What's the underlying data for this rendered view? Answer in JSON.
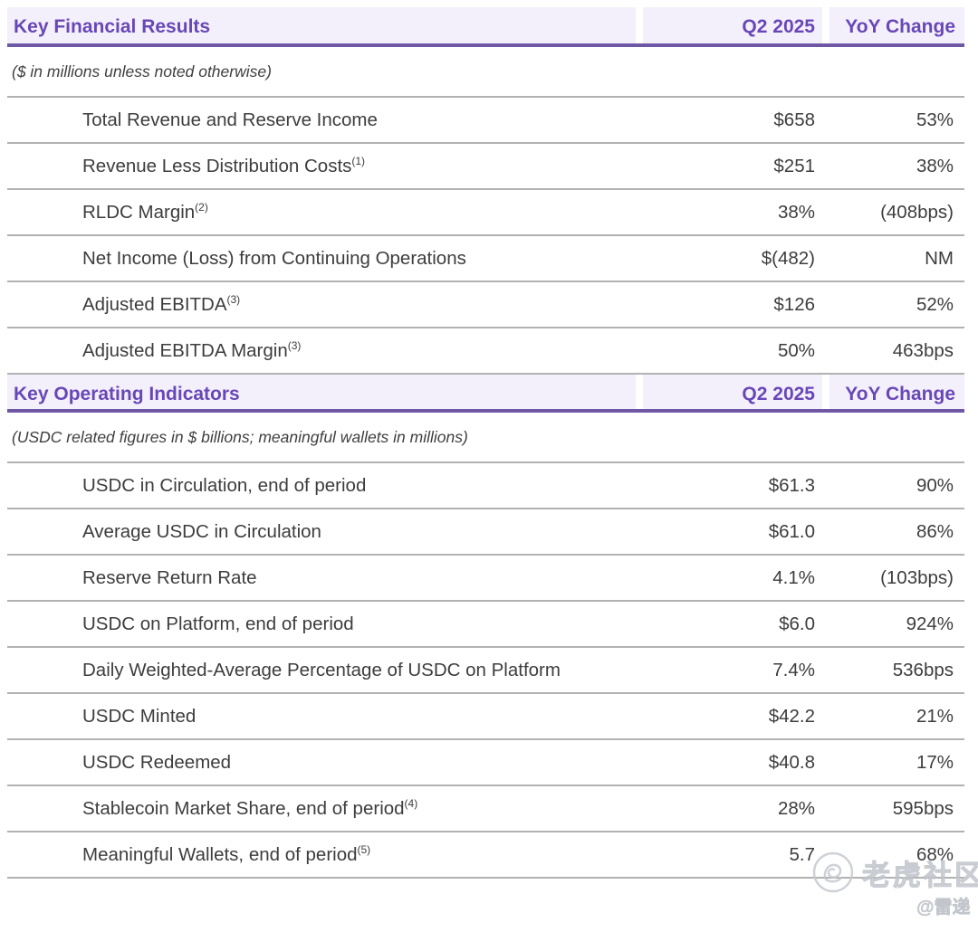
{
  "sections": [
    {
      "title": "Key Financial Results",
      "period_label": "Q2 2025",
      "change_label": "YoY Change",
      "note": "($ in millions unless noted otherwise)",
      "rows": [
        {
          "label": "Total Revenue and Reserve Income",
          "footnote": "",
          "value": "$658",
          "change": "53%"
        },
        {
          "label": "Revenue Less Distribution Costs",
          "footnote": "(1)",
          "value": "$251",
          "change": "38%"
        },
        {
          "label": "RLDC Margin",
          "footnote": "(2)",
          "value": "38%",
          "change": "(408bps)"
        },
        {
          "label": "Net Income (Loss) from Continuing Operations",
          "footnote": "",
          "value": "$(482)",
          "change": "NM"
        },
        {
          "label": "Adjusted EBITDA",
          "footnote": "(3)",
          "value": "$126",
          "change": "52%"
        },
        {
          "label": "Adjusted EBITDA Margin",
          "footnote": "(3)",
          "value": "50%",
          "change": "463bps"
        }
      ]
    },
    {
      "title": "Key Operating Indicators",
      "period_label": "Q2 2025",
      "change_label": "YoY Change",
      "note": "(USDC related figures in $ billions; meaningful wallets in millions)",
      "rows": [
        {
          "label": "USDC in Circulation, end of period",
          "footnote": "",
          "value": "$61.3",
          "change": "90%"
        },
        {
          "label": "Average USDC in Circulation",
          "footnote": "",
          "value": "$61.0",
          "change": "86%"
        },
        {
          "label": "Reserve Return Rate",
          "footnote": "",
          "value": "4.1%",
          "change": "(103bps)"
        },
        {
          "label": "USDC on Platform, end of period",
          "footnote": "",
          "value": "$6.0",
          "change": "924%"
        },
        {
          "label": "Daily Weighted-Average Percentage of USDC on Platform",
          "footnote": "",
          "value": "7.4%",
          "change": "536bps"
        },
        {
          "label": "USDC Minted",
          "footnote": "",
          "value": "$42.2",
          "change": "21%"
        },
        {
          "label": "USDC Redeemed",
          "footnote": "",
          "value": "$40.8",
          "change": "17%"
        },
        {
          "label": "Stablecoin Market Share, end of period",
          "footnote": "(4)",
          "value": "28%",
          "change": "595bps"
        },
        {
          "label": "Meaningful Wallets, end of period",
          "footnote": "(5)",
          "value": "5.7",
          "change": "68%"
        }
      ]
    }
  ],
  "watermark": {
    "icon": "tiger-logo",
    "community": "老虎社区",
    "handle": "@雷递"
  },
  "colors": {
    "accent_purple": "#6847b8",
    "underline_purple": "#6e58a6",
    "header_band_bg": "#f4f0fb",
    "divider_gray": "#b2b2b2",
    "body_text": "#3d3d3d",
    "watermark_gray": "#c6cad0"
  }
}
